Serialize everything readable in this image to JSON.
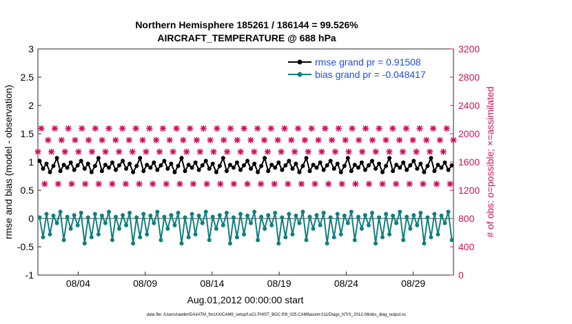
{
  "chart_data": {
    "type": "line",
    "title_lines": [
      "Northern Hemisphere 185261 / 186144 = 99.526%",
      "AIRCRAFT_TEMPERATURE @ 688 hPa"
    ],
    "xlabel": "Aug.01,2012 00:00:00 start",
    "ylabel_left": "rmse and bias (model - observation)",
    "ylabel_right": "# of obs: o=possible; ×=assimilated",
    "footnote": "data file: /Users/raeder/DAI/ATM_forcXX/CAM6_setup/f.e21.FHIST_BGC.f09_025.CAM6assim.011/Diags_NTrS_2012-08/obs_diag_output.nc",
    "xlim": [
      1,
      32
    ],
    "x_ticks": [
      {
        "x": 4,
        "label": "08/04"
      },
      {
        "x": 9,
        "label": "08/09"
      },
      {
        "x": 14,
        "label": "08/14"
      },
      {
        "x": 19,
        "label": "08/19"
      },
      {
        "x": 24,
        "label": "08/24"
      },
      {
        "x": 29,
        "label": "08/29"
      }
    ],
    "ylim_left": [
      -1,
      3
    ],
    "yticks_left": [
      -1,
      -0.5,
      0,
      0.5,
      1,
      1.5,
      2,
      2.5,
      3
    ],
    "ytick_labels_left": [
      "-1",
      "-0.5",
      "0",
      "0.5",
      "1",
      "1.5",
      "2",
      "2.5",
      "3"
    ],
    "ylim_right": [
      0,
      3200
    ],
    "yticks_right": [
      0,
      400,
      800,
      1200,
      1600,
      2000,
      2400,
      2800,
      3200
    ],
    "ytick_labels_right": [
      "0",
      "400",
      "800",
      "1200",
      "1600",
      "2000",
      "2400",
      "2800",
      "3200"
    ],
    "legend": [
      {
        "label": "rmse grand pr = 0.91508",
        "color": "#000000"
      },
      {
        "label": "bias grand pr = -0.048417",
        "color": "#0f7f7f"
      }
    ],
    "colors": {
      "rmse": "#000000",
      "bias": "#0f7f7f",
      "obs": "#d0105a",
      "zero": "#a0a0a0",
      "legend_text": "#1f4fd8"
    },
    "obs_cycle": [
      1745,
      2075,
      1290,
      1910
    ],
    "rmse_cycle": [
      1.02,
      0.88,
      0.97,
      0.82,
      0.93,
      1.07,
      0.84,
      0.95,
      0.9,
      0.99,
      0.86,
      0.94
    ],
    "bias_cycle": [
      0.02,
      -0.33,
      0.08,
      -0.28,
      0.05,
      -0.08,
      0.12,
      -0.38,
      0.03,
      -0.18,
      0.06,
      -0.12,
      0.1,
      -0.44
    ],
    "series_samples": 120
  }
}
